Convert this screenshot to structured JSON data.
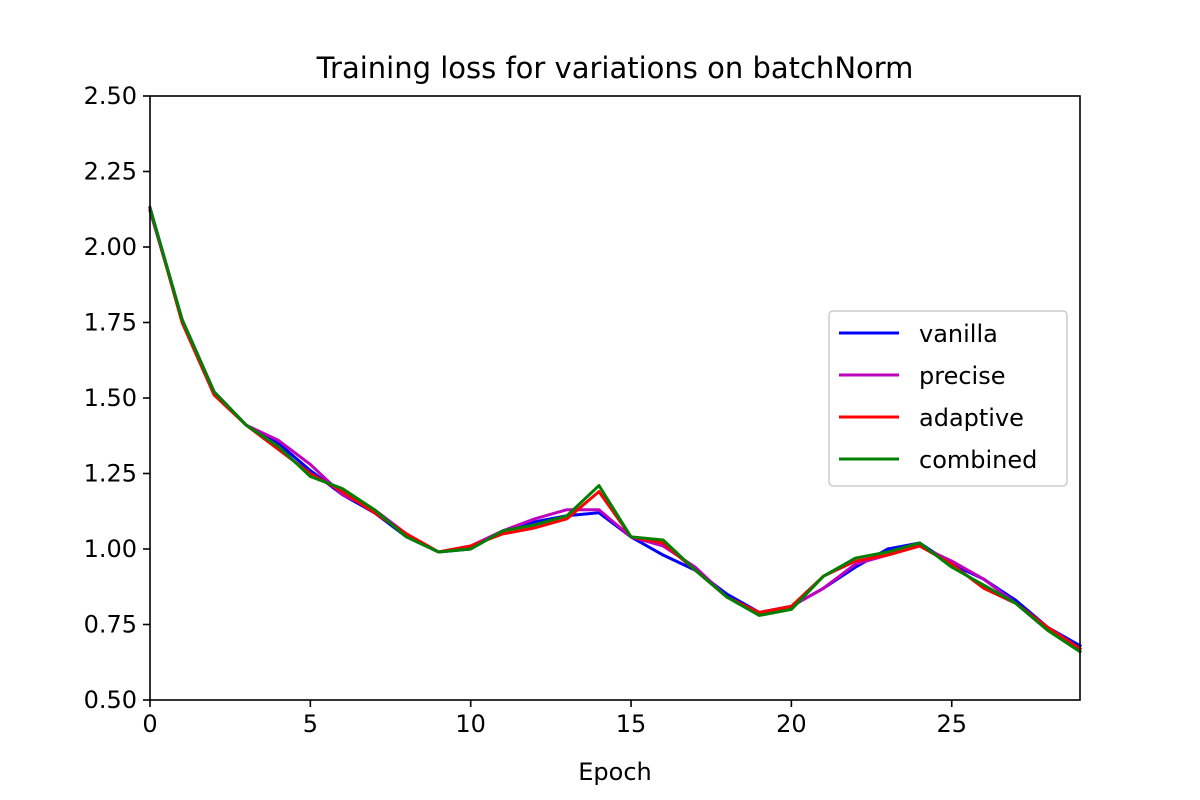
{
  "chart_data": {
    "type": "line",
    "title": "Training loss for variations on batchNorm",
    "xlabel": "Epoch",
    "ylabel": "",
    "xlim": [
      0,
      29
    ],
    "ylim": [
      0.5,
      2.5
    ],
    "x_ticks": [
      "0",
      "5",
      "10",
      "15",
      "20",
      "25"
    ],
    "y_ticks": [
      "0.50",
      "0.75",
      "1.00",
      "1.25",
      "1.50",
      "1.75",
      "2.00",
      "2.25",
      "2.50"
    ],
    "grid": false,
    "legend_position": "center-right",
    "x": [
      0,
      1,
      2,
      3,
      4,
      5,
      6,
      7,
      8,
      9,
      10,
      11,
      12,
      13,
      14,
      15,
      16,
      17,
      18,
      19,
      20,
      21,
      22,
      23,
      24,
      25,
      26,
      27,
      28,
      29
    ],
    "series": [
      {
        "name": "vanilla",
        "color": "#0000ff",
        "values": [
          2.13,
          1.76,
          1.52,
          1.41,
          1.35,
          1.26,
          1.18,
          1.12,
          1.04,
          0.99,
          1.0,
          1.06,
          1.09,
          1.11,
          1.12,
          1.04,
          0.98,
          0.93,
          0.85,
          0.79,
          0.81,
          0.87,
          0.94,
          1.0,
          1.02,
          0.95,
          0.9,
          0.83,
          0.74,
          0.68
        ]
      },
      {
        "name": "precise",
        "color": "#bf00bf",
        "values": [
          2.12,
          1.76,
          1.52,
          1.41,
          1.36,
          1.28,
          1.18,
          1.13,
          1.05,
          0.99,
          1.01,
          1.06,
          1.1,
          1.13,
          1.13,
          1.04,
          1.01,
          0.94,
          0.84,
          0.79,
          0.81,
          0.87,
          0.95,
          0.98,
          1.01,
          0.96,
          0.9,
          0.82,
          0.73,
          0.67
        ]
      },
      {
        "name": "adaptive",
        "color": "#ff0000",
        "values": [
          2.13,
          1.75,
          1.51,
          1.41,
          1.33,
          1.25,
          1.19,
          1.12,
          1.05,
          0.99,
          1.01,
          1.05,
          1.07,
          1.1,
          1.19,
          1.04,
          1.02,
          0.93,
          0.84,
          0.79,
          0.81,
          0.91,
          0.96,
          0.98,
          1.01,
          0.95,
          0.87,
          0.82,
          0.74,
          0.67
        ]
      },
      {
        "name": "combined",
        "color": "#008000",
        "values": [
          2.13,
          1.76,
          1.52,
          1.41,
          1.34,
          1.24,
          1.2,
          1.13,
          1.04,
          0.99,
          1.0,
          1.06,
          1.08,
          1.11,
          1.21,
          1.04,
          1.03,
          0.93,
          0.84,
          0.78,
          0.8,
          0.91,
          0.97,
          0.99,
          1.02,
          0.94,
          0.88,
          0.82,
          0.73,
          0.66
        ]
      }
    ]
  }
}
